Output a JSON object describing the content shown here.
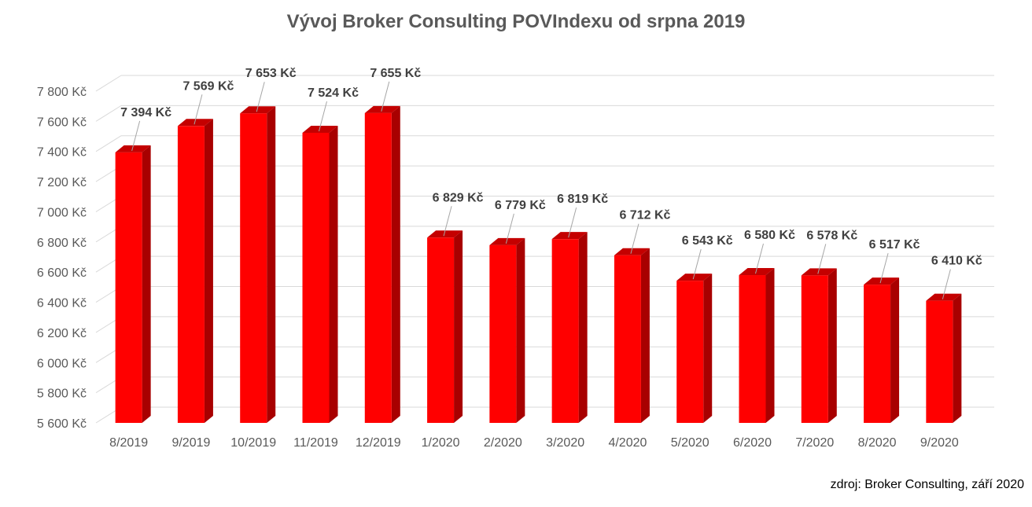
{
  "chart_data": {
    "type": "bar",
    "title": "Vývoj Broker Consulting POVIndexu od srpna 2019",
    "categories": [
      "8/2019",
      "9/2019",
      "10/2019",
      "11/2019",
      "12/2019",
      "1/2020",
      "2/2020",
      "3/2020",
      "4/2020",
      "5/2020",
      "6/2020",
      "7/2020",
      "8/2020",
      "9/2020"
    ],
    "values": [
      7394,
      7569,
      7653,
      7524,
      7655,
      6829,
      6779,
      6819,
      6712,
      6543,
      6580,
      6578,
      6517,
      6410
    ],
    "data_labels": [
      "7 394 Kč",
      "7 569 Kč",
      "7 653 Kč",
      "7 524 Kč",
      "7 655 Kč",
      "6 829 Kč",
      "6 779 Kč",
      "6 819 Kč",
      "6 712 Kč",
      "6 543 Kč",
      "6 580 Kč",
      "6 578 Kč",
      "6 517 Kč",
      "6 410 Kč"
    ],
    "ylim": [
      5600,
      7800
    ],
    "yticks": [
      5600,
      5800,
      6000,
      6200,
      6400,
      6600,
      6800,
      7000,
      7200,
      7400,
      7600,
      7800
    ],
    "ytick_labels": [
      "5 600 Kč",
      "5 800 Kč",
      "6 000 Kč",
      "6 200 Kč",
      "6 400 Kč",
      "6 600 Kč",
      "6 800 Kč",
      "7 000 Kč",
      "7 200 Kč",
      "7 400 Kč",
      "7 600 Kč",
      "7 800 Kč"
    ],
    "xlabel": "",
    "ylabel": "",
    "grid": true,
    "legend": "none",
    "bar_color": "#ff0000",
    "bar_side_color": "#a80000",
    "bar_top_color": "#c40000"
  },
  "source_note": "zdroj: Broker Consulting, září 2020"
}
